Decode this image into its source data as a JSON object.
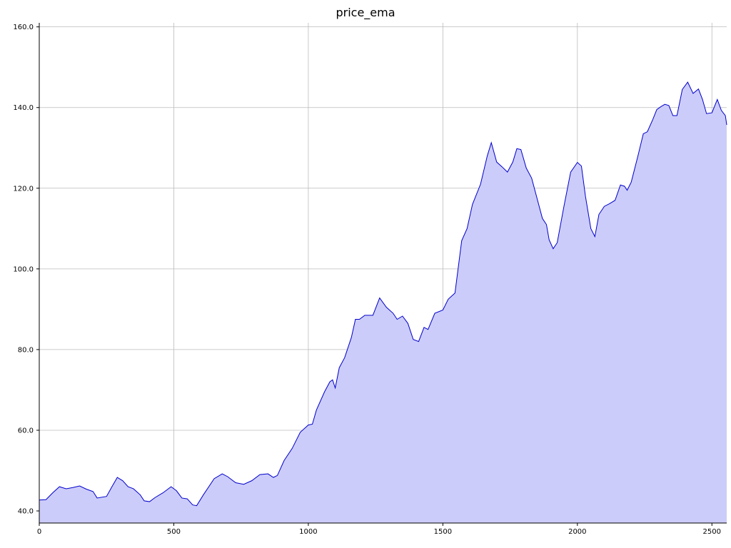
{
  "chart_data": {
    "type": "area",
    "title": "price_ema",
    "x": [
      0,
      25,
      50,
      75,
      100,
      125,
      150,
      175,
      200,
      215,
      250,
      270,
      290,
      310,
      330,
      350,
      375,
      390,
      410,
      430,
      460,
      490,
      510,
      530,
      550,
      570,
      585,
      610,
      650,
      680,
      700,
      730,
      760,
      790,
      820,
      850,
      870,
      885,
      910,
      940,
      970,
      1000,
      1015,
      1030,
      1060,
      1080,
      1090,
      1100,
      1115,
      1135,
      1160,
      1175,
      1190,
      1210,
      1240,
      1265,
      1290,
      1315,
      1330,
      1350,
      1370,
      1390,
      1410,
      1430,
      1445,
      1470,
      1500,
      1520,
      1545,
      1570,
      1590,
      1610,
      1640,
      1665,
      1680,
      1700,
      1720,
      1740,
      1760,
      1775,
      1790,
      1810,
      1830,
      1850,
      1870,
      1885,
      1895,
      1910,
      1925,
      1950,
      1975,
      2000,
      2015,
      2030,
      2050,
      2065,
      2080,
      2100,
      2120,
      2140,
      2160,
      2175,
      2185,
      2200,
      2225,
      2245,
      2260,
      2280,
      2295,
      2310,
      2325,
      2340,
      2355,
      2370,
      2390,
      2410,
      2430,
      2450,
      2465,
      2480,
      2500,
      2520,
      2535,
      2550,
      2555
    ],
    "values": [
      42.7,
      42.8,
      44.5,
      46,
      45.5,
      45.8,
      46.2,
      45.4,
      44.8,
      43.2,
      43.6,
      46,
      48.3,
      47.5,
      46,
      45.5,
      44,
      42.5,
      42.3,
      43.3,
      44.5,
      46,
      45,
      43.2,
      43,
      41.5,
      41.3,
      44,
      48,
      49.2,
      48.5,
      47,
      46.6,
      47.5,
      49,
      49.2,
      48.3,
      48.8,
      52.5,
      55.5,
      59.5,
      61.3,
      61.5,
      65,
      69.5,
      72,
      72.5,
      70.5,
      75.5,
      78,
      83,
      87.5,
      87.5,
      88.5,
      88.5,
      92.8,
      90.5,
      89,
      87.5,
      88.3,
      86.5,
      82.5,
      82,
      85.5,
      85,
      89,
      89.8,
      92.5,
      94,
      107,
      110,
      116,
      121,
      128,
      131.3,
      126.5,
      125.3,
      124,
      126.5,
      129.8,
      129.6,
      125,
      122.5,
      117.5,
      112.5,
      111,
      107.2,
      105,
      106.5,
      115.5,
      124,
      126.4,
      125.5,
      118,
      110,
      108,
      113.5,
      115.5,
      116.2,
      117,
      120.8,
      120.5,
      119.5,
      121.5,
      128,
      133.5,
      134,
      137,
      139.5,
      140.2,
      140.8,
      140.5,
      138,
      138,
      144.5,
      146.3,
      143.5,
      144.6,
      142,
      138.5,
      138.7,
      142,
      139.3,
      138,
      135.7
    ],
    "color": "#0000cc",
    "fill": "#ccccfa",
    "xlim": [
      0,
      2555
    ],
    "ylim": [
      37,
      161
    ],
    "xticks": [
      0,
      500,
      1000,
      1500,
      2000,
      2500
    ],
    "yticks": [
      {
        "value": 40,
        "label": "40.0"
      },
      {
        "value": 60,
        "label": "60.0"
      },
      {
        "value": 80,
        "label": "80.0"
      },
      {
        "value": 100,
        "label": "100.0"
      },
      {
        "value": 120,
        "label": "120.0"
      },
      {
        "value": 140,
        "label": "140.0"
      },
      {
        "value": 160,
        "label": "160.0"
      }
    ],
    "grid": true
  }
}
